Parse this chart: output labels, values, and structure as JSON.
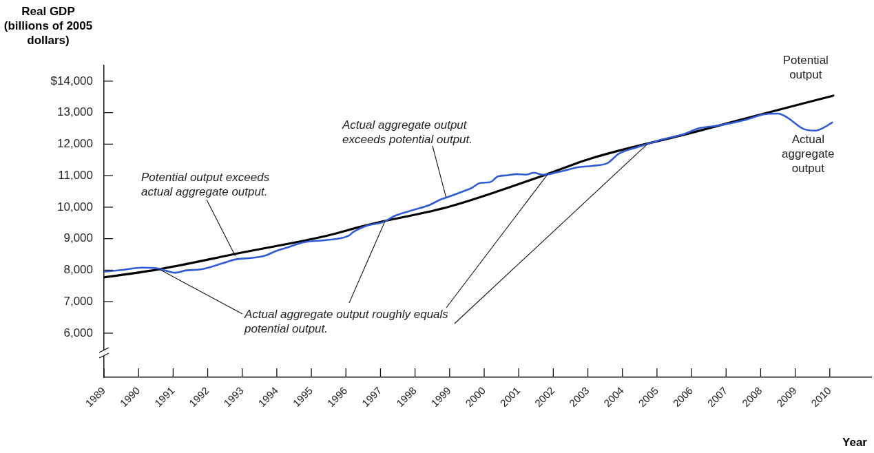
{
  "chart_data": {
    "type": "line",
    "xlabel": "Year",
    "ylabel": "Real GDP (billions of 2005 dollars)",
    "xlim": [
      1989,
      2011.2
    ],
    "ylim": [
      4600,
      14500
    ],
    "xticks": [
      1989,
      1990,
      1991,
      1992,
      1993,
      1994,
      1995,
      1996,
      1997,
      1998,
      1999,
      2000,
      2001,
      2002,
      2003,
      2004,
      2005,
      2006,
      2007,
      2008,
      2009,
      2010
    ],
    "yticks": [
      {
        "value": 6000,
        "label": "6,000"
      },
      {
        "value": 7000,
        "label": "7,000"
      },
      {
        "value": 8000,
        "label": "8,000"
      },
      {
        "value": 9000,
        "label": "9,000"
      },
      {
        "value": 10000,
        "label": "10,000"
      },
      {
        "value": 11000,
        "label": "11,000"
      },
      {
        "value": 12000,
        "label": "12,000"
      },
      {
        "value": 13000,
        "label": "13,000"
      },
      {
        "value": 14000,
        "label": "$14,000"
      }
    ],
    "legend": false,
    "marker": "none",
    "line_style": "solid",
    "series": [
      {
        "name": "Potential output",
        "color": "#000000",
        "x": [
          1989,
          1990.6,
          1993,
          1995.4,
          1996.6,
          1999,
          2001.7,
          2003.1,
          2006,
          2008.1,
          2010.1
        ],
        "values": [
          7770,
          8030,
          8560,
          9080,
          9430,
          10020,
          11000,
          11550,
          12360,
          12970,
          13540
        ]
      },
      {
        "name": "Actual aggregate output",
        "color": "#2f5bd6",
        "x": [
          1989,
          1989.56,
          1990.09,
          1990.53,
          1990.72,
          1991.05,
          1991.36,
          1991.83,
          1992.41,
          1992.8,
          1993.19,
          1993.63,
          1993.96,
          1994.27,
          1994.8,
          1995.38,
          1996.09,
          1996.21,
          1996.6,
          1997.06,
          1997.45,
          1997.95,
          1998.42,
          1998.73,
          1998.92,
          1999.39,
          1999.64,
          1999.89,
          2000.16,
          2000.41,
          2000.67,
          2000.94,
          2001.19,
          2001.44,
          2001.71,
          2002.16,
          2002.74,
          2003.13,
          2003.57,
          2003.9,
          2004.48,
          2005.12,
          2005.78,
          2006.23,
          2006.56,
          2007.06,
          2007.59,
          2008.11,
          2008.5,
          2008.75,
          2009.27,
          2009.58,
          2009.85,
          2010.07
        ],
        "values": [
          7950,
          8010,
          8080,
          8060,
          8010,
          7920,
          7990,
          8030,
          8210,
          8340,
          8380,
          8450,
          8600,
          8710,
          8890,
          8950,
          9100,
          9210,
          9410,
          9520,
          9740,
          9910,
          10070,
          10240,
          10310,
          10500,
          10610,
          10770,
          10790,
          10980,
          11010,
          11050,
          11030,
          11090,
          11030,
          11120,
          11270,
          11310,
          11400,
          11700,
          11920,
          12140,
          12320,
          12510,
          12560,
          12650,
          12780,
          12950,
          12970,
          12860,
          12470,
          12430,
          12540,
          12690
        ]
      }
    ],
    "annotations": [
      {
        "text": "Potential output exceeds actual aggregate output.",
        "x": 1992.8,
        "y": 8450
      },
      {
        "text": "Actual aggregate output exceeds potential output.",
        "x": 1998.9,
        "y": 10300
      },
      {
        "text": "Actual aggregate output roughly equals potential output.",
        "x": 1990.6,
        "y": 8030
      }
    ]
  }
}
